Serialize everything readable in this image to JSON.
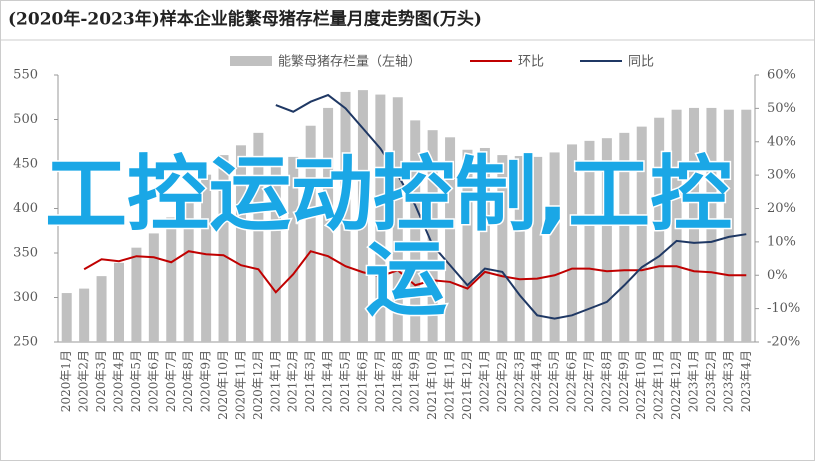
{
  "chart_data": {
    "type": "bar_line",
    "title": "(2020年-2023年)样本企业能繁母猪存栏量月度走势图(万头)",
    "categories": [
      "2020年1月",
      "2020年2月",
      "2020年3月",
      "2020年4月",
      "2020年5月",
      "2020年6月",
      "2020年7月",
      "2020年8月",
      "2020年9月",
      "2020年10月",
      "2020年11月",
      "2020年12月",
      "2021年1月",
      "2021年2月",
      "2021年3月",
      "2021年4月",
      "2021年5月",
      "2021年6月",
      "2021年7月",
      "2021年8月",
      "2021年9月",
      "2021年10月",
      "2021年11月",
      "2021年12月",
      "2022年1月",
      "2022年2月",
      "2022年3月",
      "2022年4月",
      "2022年5月",
      "2022年6月",
      "2022年7月",
      "2022年8月",
      "2022年9月",
      "2022年10月",
      "2022年11月",
      "2022年12月",
      "2023年1月",
      "2023年2月",
      "2023年3月",
      "2023年4月"
    ],
    "series": [
      {
        "name": "能繁母猪存栏量（左轴）",
        "color": "#c0c0c0",
        "type": "bar",
        "values": [
          305,
          310,
          324,
          339,
          356,
          372,
          390,
          412,
          438,
          460,
          471,
          485,
          458,
          458,
          493,
          513,
          531,
          533,
          528,
          525,
          499,
          488,
          480,
          466,
          468,
          460,
          459,
          458,
          463,
          472,
          476,
          479,
          485,
          492,
          502,
          511,
          513,
          513,
          511,
          511
        ]
      },
      {
        "name": "环比",
        "color": "#c00000",
        "type": "line",
        "axis": "y2",
        "values": [
          null,
          1.8,
          4.8,
          4.2,
          5.7,
          5.4,
          3.9,
          7.2,
          6.3,
          6,
          3,
          1.8,
          -5.1,
          0.3,
          7.2,
          5.7,
          2.7,
          0.9,
          -0.3,
          1.5,
          -3,
          -1.5,
          -2,
          -4,
          1,
          -0.3,
          -1.2,
          -1,
          0,
          2,
          2,
          1.2,
          1.5,
          1.5,
          2.7,
          2.7,
          1.2,
          0.9,
          0,
          0
        ]
      },
      {
        "name": "同比",
        "color": "#1f3864",
        "type": "line",
        "axis": "y2",
        "values": [
          null,
          null,
          null,
          null,
          null,
          null,
          null,
          null,
          null,
          null,
          null,
          null,
          51,
          49,
          52,
          54,
          50,
          44,
          38,
          30,
          21,
          9,
          3,
          -3,
          2,
          1,
          -6,
          -12,
          -13,
          -12,
          -10,
          -8,
          -3,
          2.4,
          5.7,
          10.3,
          9.7,
          10,
          11.5,
          12.3
        ]
      }
    ],
    "ylim": [
      250,
      550
    ],
    "yticks": [
      250,
      300,
      350,
      400,
      450,
      500,
      550
    ],
    "y2lim": [
      -20,
      60
    ],
    "y2ticks": [
      {
        "value": -20,
        "label": "-20%"
      },
      {
        "value": -10,
        "label": "-10%"
      },
      {
        "value": 0,
        "label": "0%"
      },
      {
        "value": 10,
        "label": "10%"
      },
      {
        "value": 20,
        "label": "20%"
      },
      {
        "value": 30,
        "label": "30%"
      },
      {
        "value": 40,
        "label": "40%"
      },
      {
        "value": 50,
        "label": "50%"
      },
      {
        "value": 60,
        "label": "60%"
      }
    ],
    "legend": "top",
    "annotations": [
      "工控运动控制,工控",
      "运"
    ]
  }
}
